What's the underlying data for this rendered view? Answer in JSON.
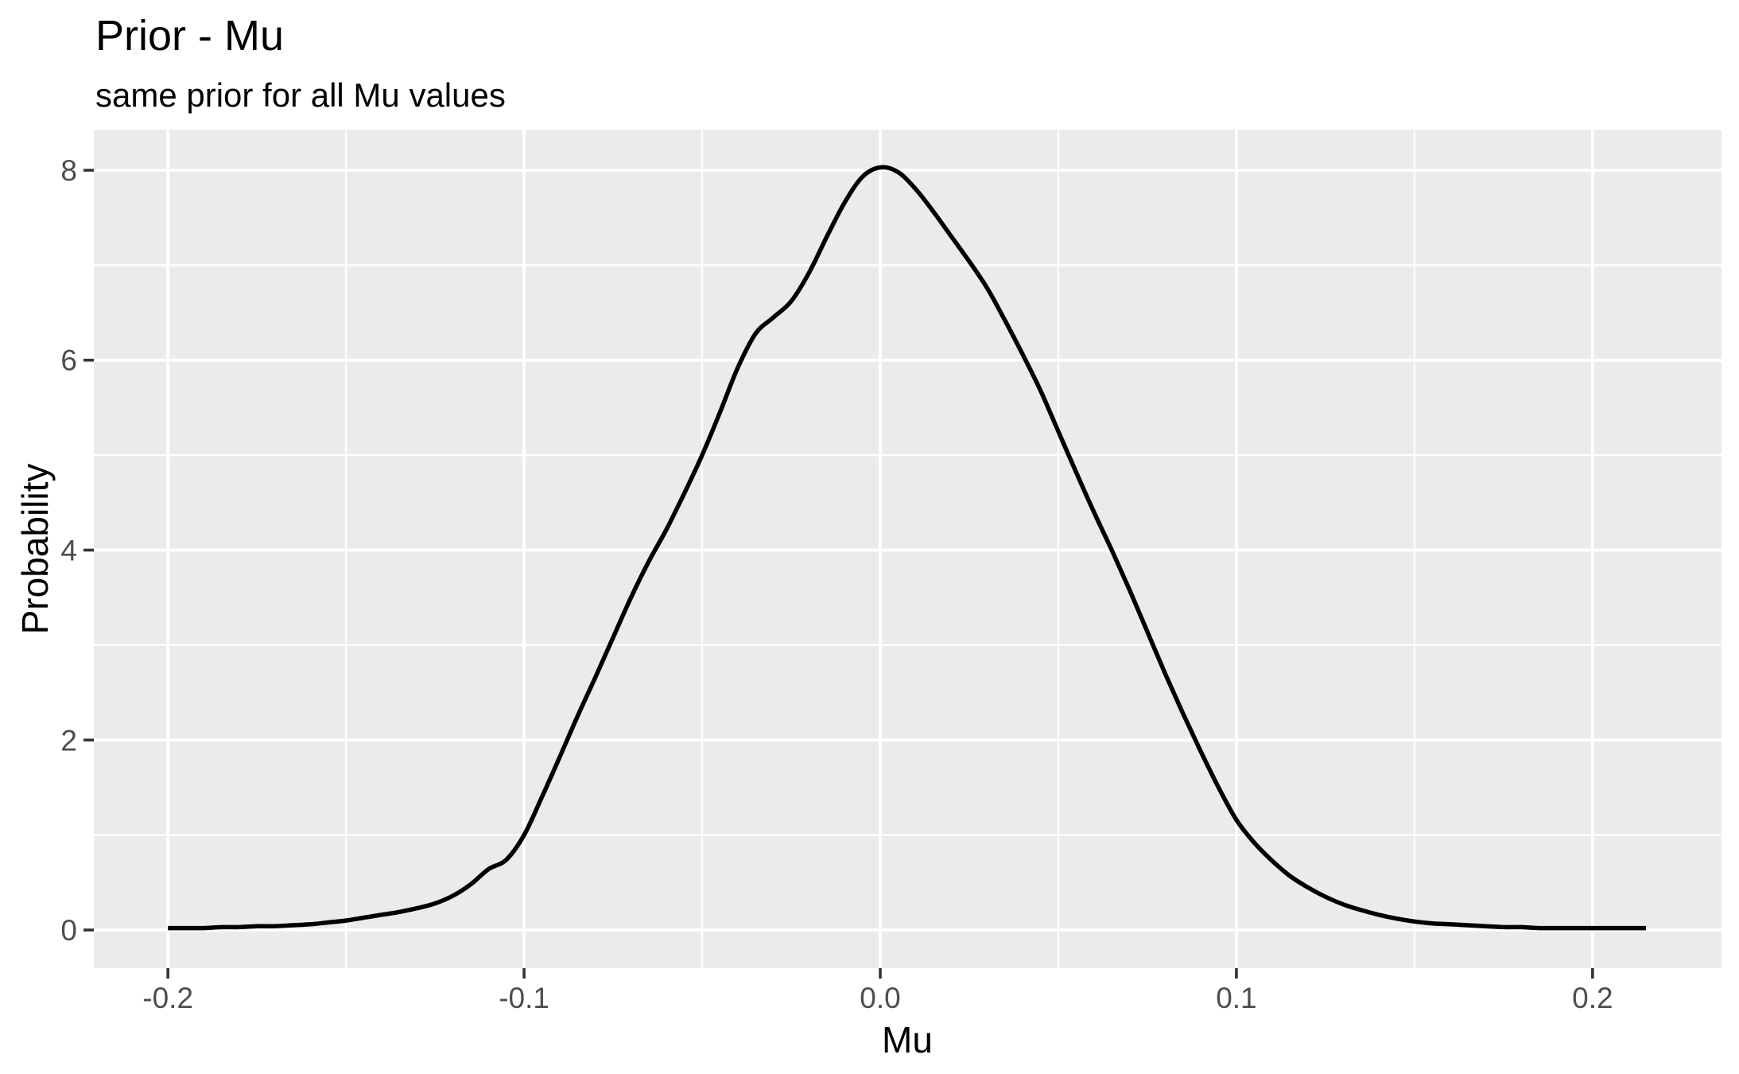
{
  "chart_data": {
    "type": "line",
    "subtype": "density",
    "title": "Prior - Mu",
    "subtitle": "same prior for all Mu values",
    "xlabel": "Mu",
    "ylabel": "Probability",
    "xlim": [
      -0.2208,
      0.2362
    ],
    "ylim": [
      -0.402,
      8.427
    ],
    "grid": true,
    "legend_position": "none",
    "x_major_ticks": [
      -0.2,
      -0.1,
      0.0,
      0.1,
      0.2
    ],
    "x_tick_labels": [
      "-0.2",
      "-0.1",
      "0.0",
      "0.1",
      "0.2"
    ],
    "x_minor_ticks": [
      -0.15,
      -0.05,
      0.05,
      0.15
    ],
    "y_major_ticks": [
      0,
      2,
      4,
      6,
      8
    ],
    "y_tick_labels": [
      "0",
      "2",
      "4",
      "6",
      "8"
    ],
    "y_minor_ticks": [
      1,
      3,
      5,
      7
    ],
    "series": [
      {
        "name": "prior-density-curve",
        "x": [
          -0.2,
          -0.195,
          -0.19,
          -0.185,
          -0.18,
          -0.175,
          -0.17,
          -0.165,
          -0.16,
          -0.155,
          -0.15,
          -0.145,
          -0.14,
          -0.135,
          -0.13,
          -0.125,
          -0.12,
          -0.115,
          -0.11,
          -0.105,
          -0.1,
          -0.095,
          -0.09,
          -0.085,
          -0.08,
          -0.075,
          -0.07,
          -0.065,
          -0.06,
          -0.055,
          -0.05,
          -0.045,
          -0.04,
          -0.035,
          -0.03,
          -0.025,
          -0.02,
          -0.015,
          -0.01,
          -0.005,
          0.0,
          0.005,
          0.01,
          0.015,
          0.02,
          0.025,
          0.03,
          0.035,
          0.04,
          0.045,
          0.05,
          0.055,
          0.06,
          0.065,
          0.07,
          0.075,
          0.08,
          0.085,
          0.09,
          0.095,
          0.1,
          0.105,
          0.11,
          0.115,
          0.12,
          0.125,
          0.13,
          0.135,
          0.14,
          0.145,
          0.15,
          0.155,
          0.16,
          0.165,
          0.17,
          0.175,
          0.18,
          0.185,
          0.19,
          0.195,
          0.2,
          0.205,
          0.21,
          0.215
        ],
        "y": [
          0.02,
          0.02,
          0.02,
          0.03,
          0.03,
          0.04,
          0.04,
          0.05,
          0.06,
          0.08,
          0.1,
          0.13,
          0.16,
          0.19,
          0.23,
          0.28,
          0.36,
          0.48,
          0.64,
          0.74,
          1.0,
          1.4,
          1.82,
          2.25,
          2.66,
          3.08,
          3.5,
          3.88,
          4.22,
          4.6,
          5.0,
          5.45,
          5.92,
          6.28,
          6.45,
          6.62,
          6.92,
          7.3,
          7.66,
          7.93,
          8.03,
          7.98,
          7.8,
          7.56,
          7.3,
          7.04,
          6.76,
          6.42,
          6.06,
          5.68,
          5.25,
          4.82,
          4.4,
          4.0,
          3.58,
          3.14,
          2.7,
          2.28,
          1.88,
          1.5,
          1.16,
          0.92,
          0.73,
          0.57,
          0.45,
          0.35,
          0.27,
          0.21,
          0.16,
          0.12,
          0.09,
          0.07,
          0.06,
          0.05,
          0.04,
          0.03,
          0.03,
          0.02,
          0.02,
          0.02,
          0.02,
          0.02,
          0.02,
          0.02
        ]
      }
    ],
    "colors": {
      "page_background": "#FFFFFF",
      "panel_background": "#EBEBEB",
      "gridline": "#FFFFFF",
      "line": "#000000",
      "tick_mark": "#333333",
      "tick_label": "#4D4D4D",
      "text": "#000000"
    }
  }
}
